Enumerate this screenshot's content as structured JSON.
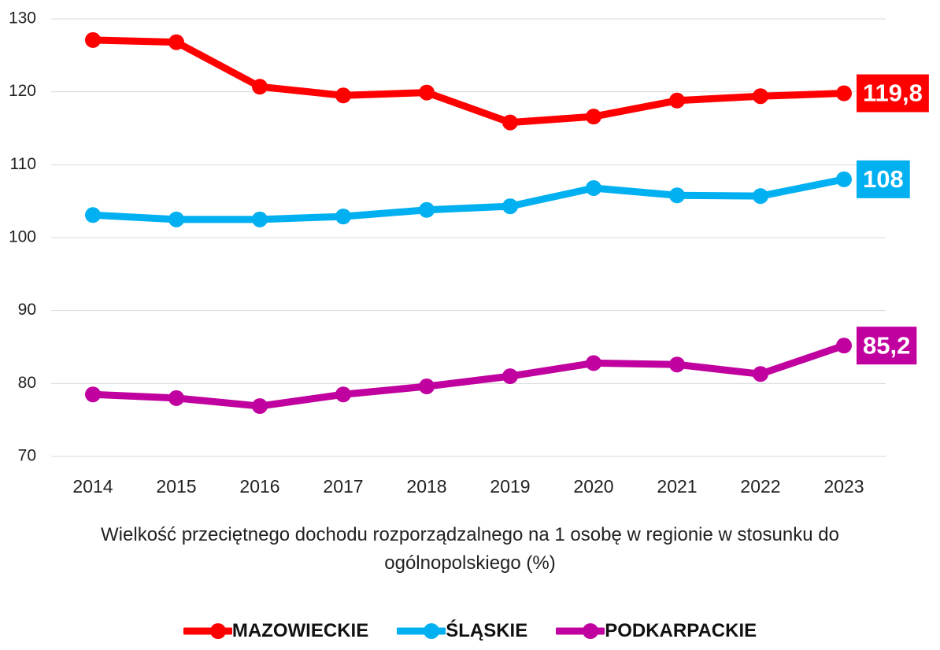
{
  "chart_data": {
    "type": "line",
    "xlabel": "Wielkość przeciętnego dochodu rozporządzalnego na 1 osobę w regionie w stosunku do ogólnopolskiego (%)",
    "categories": [
      "2014",
      "2015",
      "2016",
      "2017",
      "2018",
      "2019",
      "2020",
      "2021",
      "2022",
      "2023"
    ],
    "series": [
      {
        "name": "MAZOWIECKIE",
        "color": "#ff0000",
        "values": [
          127.1,
          126.8,
          120.7,
          119.5,
          119.9,
          115.8,
          116.6,
          118.8,
          119.4,
          119.8
        ],
        "value_labels": [
          null,
          null,
          null,
          null,
          null,
          null,
          null,
          null,
          null,
          "119,8"
        ]
      },
      {
        "name": "ŚLĄSKIE",
        "color": "#00b0f0",
        "values": [
          103.1,
          102.5,
          102.5,
          102.9,
          103.8,
          104.3,
          106.8,
          105.8,
          105.7,
          108
        ],
        "value_labels": [
          null,
          null,
          null,
          null,
          null,
          null,
          null,
          null,
          null,
          "108"
        ]
      },
      {
        "name": "PODKARPACKIE",
        "color": "#c0009f",
        "values": [
          78.5,
          78.0,
          76.9,
          78.5,
          79.6,
          81.0,
          82.8,
          82.6,
          81.3,
          85.2
        ],
        "value_labels": [
          null,
          null,
          null,
          null,
          null,
          null,
          null,
          null,
          null,
          "85,2"
        ]
      }
    ],
    "ylim": [
      70,
      130
    ],
    "yticks": [
      70,
      80,
      90,
      100,
      110,
      120,
      130
    ],
    "grid": true,
    "legend": "bottom"
  }
}
